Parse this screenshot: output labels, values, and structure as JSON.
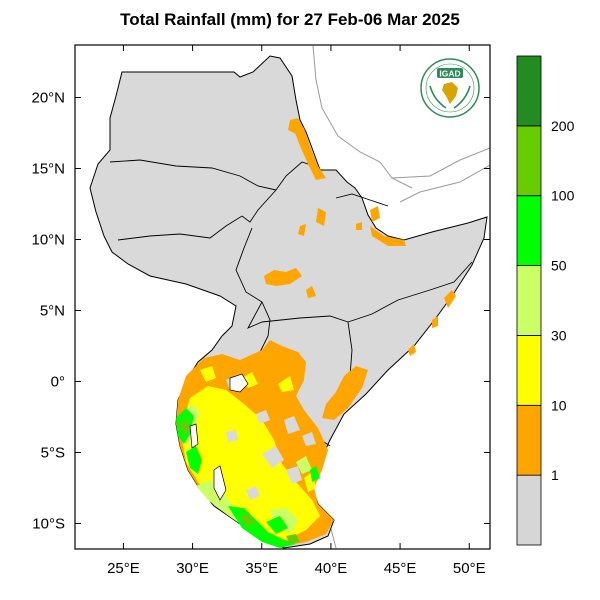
{
  "title": "Total Rainfall (mm) for 27 Feb-06 Mar 2025",
  "logo_text": "IGAD",
  "x_ticks": [
    {
      "lon": 25,
      "label": "25°E"
    },
    {
      "lon": 30,
      "label": "30°E"
    },
    {
      "lon": 35,
      "label": "35°E"
    },
    {
      "lon": 40,
      "label": "40°E"
    },
    {
      "lon": 45,
      "label": "45°E"
    },
    {
      "lon": 50,
      "label": "50°E"
    }
  ],
  "y_ticks": [
    {
      "lat": 20,
      "label": "20°N"
    },
    {
      "lat": 15,
      "label": "15°N"
    },
    {
      "lat": 10,
      "label": "10°N"
    },
    {
      "lat": 5,
      "label": "5°N"
    },
    {
      "lat": 0,
      "label": "0°"
    },
    {
      "lat": -5,
      "label": "5°S"
    },
    {
      "lat": -10,
      "label": "10°S"
    }
  ],
  "extent": {
    "lon_min": 21.5,
    "lon_max": 51.5,
    "lat_min": -11.8,
    "lat_max": 23.7
  },
  "colorbar": {
    "classes": [
      {
        "color": "#d6d6d6"
      },
      {
        "color": "#ffa500"
      },
      {
        "color": "#ffff00"
      },
      {
        "color": "#ccff66"
      },
      {
        "color": "#00ff00"
      },
      {
        "color": "#66cc00"
      },
      {
        "color": "#228b22"
      }
    ],
    "labels": [
      "1",
      "10",
      "30",
      "50",
      "100",
      "200"
    ]
  }
}
